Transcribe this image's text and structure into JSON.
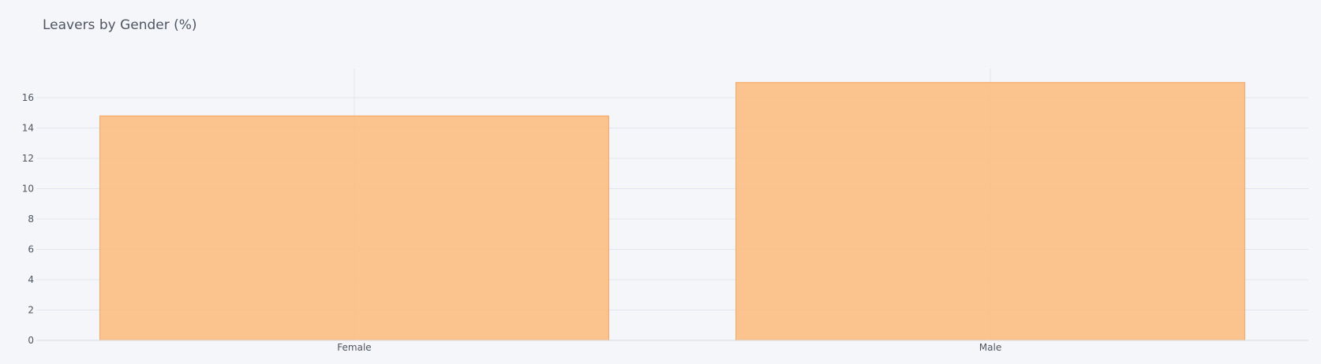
{
  "chart_data": {
    "type": "bar",
    "title": "Leavers by Gender (%)",
    "xlabel": "",
    "ylabel": "",
    "categories": [
      "Female",
      "Male"
    ],
    "values": [
      14.8,
      17.0
    ],
    "ylim": [
      0,
      18
    ],
    "yticks": [
      0,
      2,
      4,
      6,
      8,
      10,
      12,
      14,
      16
    ],
    "grid": true,
    "legend": "none",
    "colors": {
      "background": "#F5F6F9",
      "bar_fill": "#FBBF84",
      "bar_stroke": "#F6A45C",
      "grid": "#E1E5ED",
      "text": "#4D5663"
    }
  }
}
